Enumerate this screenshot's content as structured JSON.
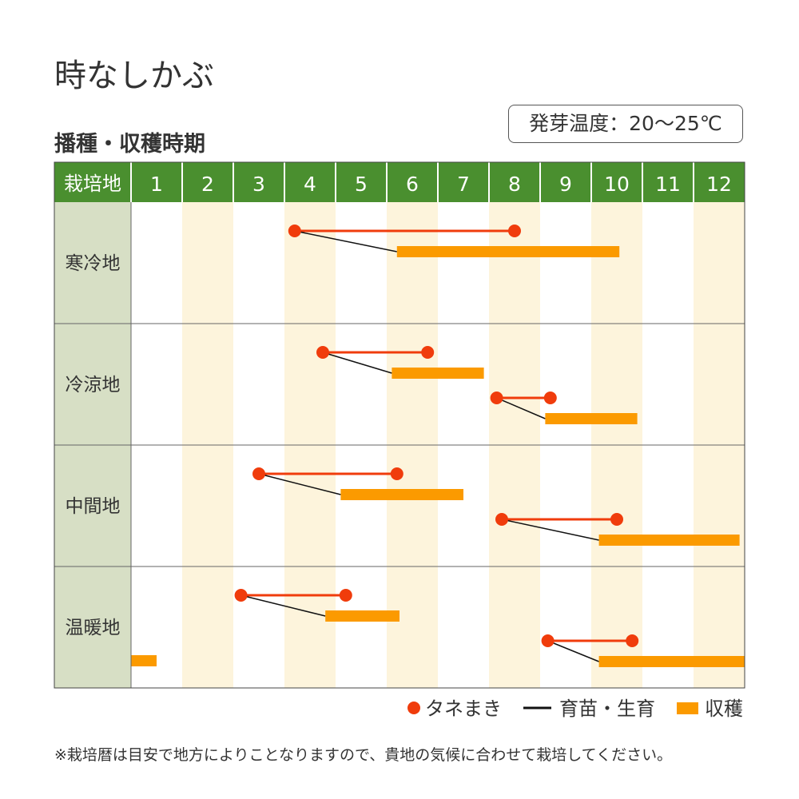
{
  "title": "時なしかぶ",
  "germination_temp": "発芽温度：20〜25℃",
  "note": "※栽培暦は目安で地方によりことなりますので、貴地の気候に合わせて栽培してください。",
  "colors": {
    "header": "#4a8f2f",
    "label_col": "#d7dfc5",
    "stripe": "#fdf4dc",
    "sow": "#f03c0c",
    "grow": "#111111",
    "harvest": "#fb9a00"
  },
  "chart_data": {
    "type": "gantt",
    "title": "播種・収穫時期",
    "header_label": "栽培地",
    "categories": [
      "1",
      "2",
      "3",
      "4",
      "5",
      "6",
      "7",
      "8",
      "9",
      "10",
      "11",
      "12"
    ],
    "x_unit": "months elapsed from Jan 1 (0–12)",
    "legend": [
      {
        "key": "sow",
        "label": "タネまき"
      },
      {
        "key": "grow",
        "label": "育苗・生育"
      },
      {
        "key": "harvest",
        "label": "収穫"
      }
    ],
    "legend_position": "bottom-right",
    "regions": [
      {
        "name": "寒冷地",
        "schedules": [
          {
            "sow": [
              3.2,
              7.5
            ],
            "harvest": [
              5.2,
              9.55
            ]
          }
        ]
      },
      {
        "name": "冷涼地",
        "schedules": [
          {
            "sow": [
              3.75,
              5.8
            ],
            "harvest": [
              5.1,
              6.9
            ]
          },
          {
            "sow": [
              7.15,
              8.2
            ],
            "harvest": [
              8.1,
              9.9
            ]
          }
        ]
      },
      {
        "name": "中間地",
        "schedules": [
          {
            "sow": [
              2.5,
              5.2
            ],
            "harvest": [
              4.1,
              6.5
            ]
          },
          {
            "sow": [
              7.25,
              9.5
            ],
            "harvest": [
              9.15,
              11.9
            ]
          }
        ]
      },
      {
        "name": "温暖地",
        "schedules": [
          {
            "sow": [
              2.15,
              4.2
            ],
            "harvest": [
              3.8,
              5.25
            ]
          },
          {
            "sow": [
              8.15,
              9.8
            ],
            "harvest": [
              9.15,
              12
            ]
          },
          {
            "harvest": [
              0,
              0.5
            ]
          }
        ]
      }
    ]
  }
}
